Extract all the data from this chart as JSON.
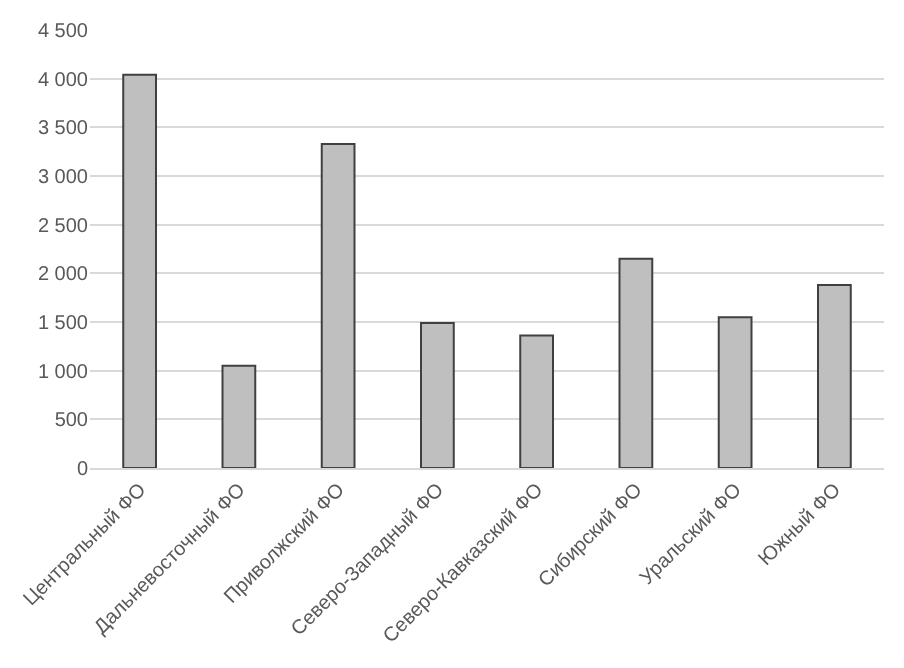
{
  "chart_data": {
    "type": "bar",
    "categories": [
      "Центральный ФО",
      "Дальневосточный ФО",
      "Приволжский ФО",
      "Северо-Западный ФО",
      "Северо-Кавказский ФО",
      "Сибирский ФО",
      "Уральский ФО",
      "Южный ФО"
    ],
    "values": [
      4040,
      1050,
      3330,
      1490,
      1360,
      2150,
      1550,
      1880
    ],
    "color": "#bfbfbf",
    "ylim": [
      0,
      4500
    ],
    "yticks": [
      0,
      500,
      {
        "value": 1000,
        "label": "1 000"
      },
      {
        "value": 1500,
        "label": "1 500"
      },
      {
        "value": 2000,
        "label": "2 000"
      },
      {
        "value": 2500,
        "label": "2 500"
      },
      {
        "value": 3000,
        "label": "3 000"
      },
      {
        "value": 3500,
        "label": "3 500"
      },
      {
        "value": 4000,
        "label": "4 000"
      },
      {
        "value": 4500,
        "label": "4 500"
      }
    ],
    "grid": "y"
  }
}
